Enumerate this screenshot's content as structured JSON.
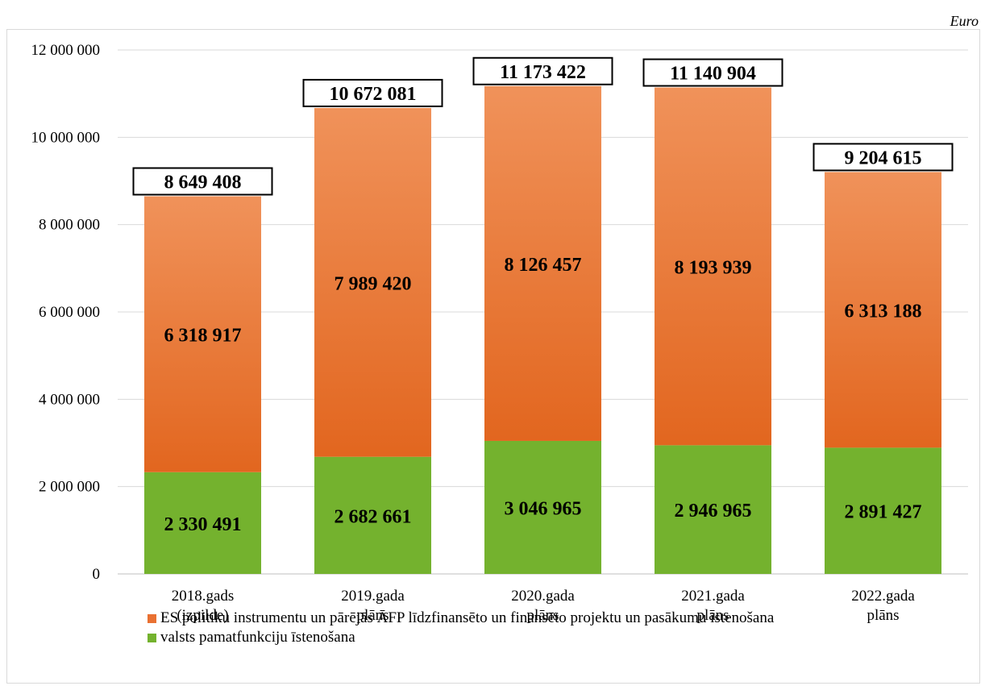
{
  "unit_label": "Euro",
  "colors": {
    "orange_top": "#f0925a",
    "orange_bottom": "#e2661f",
    "green": "#74b22e",
    "grid": "#d9d9d9",
    "axis": "#bfbfbf"
  },
  "legend": [
    {
      "label": "ES politiku instrumentu un pārējās ĀFP līdzfinansēto un finansēto projektu un pasākumu īstenošana",
      "color": "#e97132"
    },
    {
      "label": "valsts pamatfunkciju īstenošana",
      "color": "#74b22e"
    }
  ],
  "chart_data": {
    "type": "bar",
    "stacked": true,
    "categories": [
      [
        "2018.gads",
        "(izpilde)"
      ],
      [
        "2019.gada",
        "plāns"
      ],
      [
        "2020.gada",
        "plāns"
      ],
      [
        "2021.gada",
        "plāns"
      ],
      [
        "2022.gada",
        "plāns"
      ]
    ],
    "series": [
      {
        "name": "valsts pamatfunkciju īstenošana",
        "values": [
          2330491,
          2682661,
          3046965,
          2946965,
          2891427
        ],
        "labels": [
          "2 330 491",
          "2 682 661",
          "3 046 965",
          "2 946 965",
          "2 891 427"
        ]
      },
      {
        "name": "ES politiku instrumentu un pārējās ĀFP līdzfinansēto un finansēto projektu un pasākumu īstenošana",
        "values": [
          6318917,
          7989420,
          8126457,
          8193939,
          6313188
        ],
        "labels": [
          "6 318 917",
          "7 989 420",
          "8 126 457",
          "8 193 939",
          "6 313 188"
        ]
      }
    ],
    "totals": [
      8649408,
      10672081,
      11173422,
      11140904,
      9204615
    ],
    "total_labels": [
      "8 649 408",
      "10 672 081",
      "11 173 422",
      "11 140 904",
      "9 204 615"
    ],
    "ylim": [
      0,
      12000000
    ],
    "yticks": [
      0,
      2000000,
      4000000,
      6000000,
      8000000,
      10000000,
      12000000
    ],
    "ytick_labels": [
      "0",
      "2 000 000",
      "4 000 000",
      "6 000 000",
      "8 000 000",
      "10 000 000",
      "12 000 000"
    ],
    "grid": true,
    "legend_position": "bottom"
  }
}
